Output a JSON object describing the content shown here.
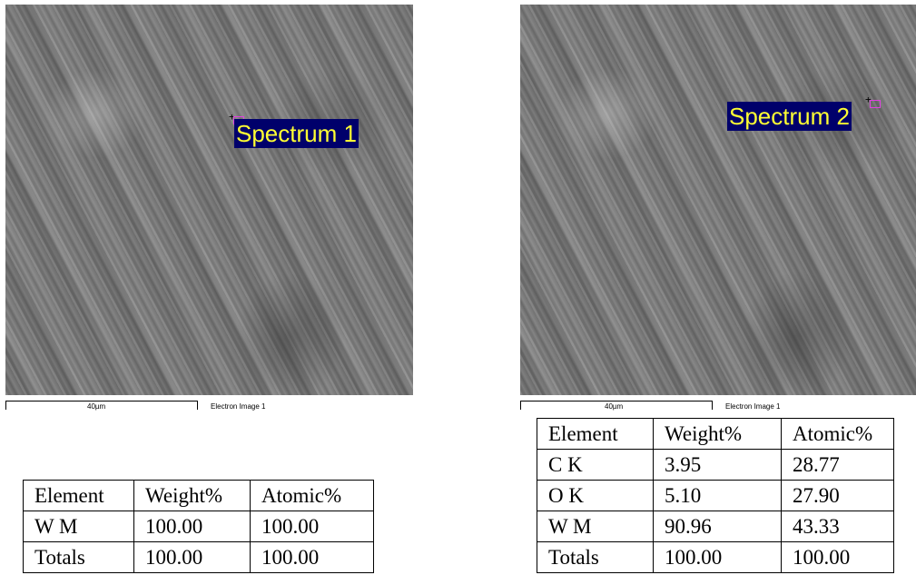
{
  "left": {
    "spectrum_label": "Spectrum 1",
    "scale_bar_label": "40µm",
    "caption": "Electron Image 1",
    "table": {
      "headers": [
        "Element",
        "Weight%",
        "Atomic%"
      ],
      "rows": [
        [
          "W M",
          "100.00",
          "100.00"
        ],
        [
          "Totals",
          "100.00",
          "100.00"
        ]
      ]
    }
  },
  "right": {
    "spectrum_label": "Spectrum 2",
    "scale_bar_label": "40µm",
    "caption": "Electron Image 1",
    "table": {
      "headers": [
        "Element",
        "Weight%",
        "Atomic%"
      ],
      "rows": [
        [
          "C K",
          "3.95",
          "28.77"
        ],
        [
          "O K",
          "5.10",
          "27.90"
        ],
        [
          "W M",
          "90.96",
          "43.33"
        ],
        [
          "Totals",
          "100.00",
          "100.00"
        ]
      ]
    }
  },
  "colors": {
    "label_background": "#00006b",
    "label_text": "#ffff33",
    "marker": "#e040e0"
  }
}
